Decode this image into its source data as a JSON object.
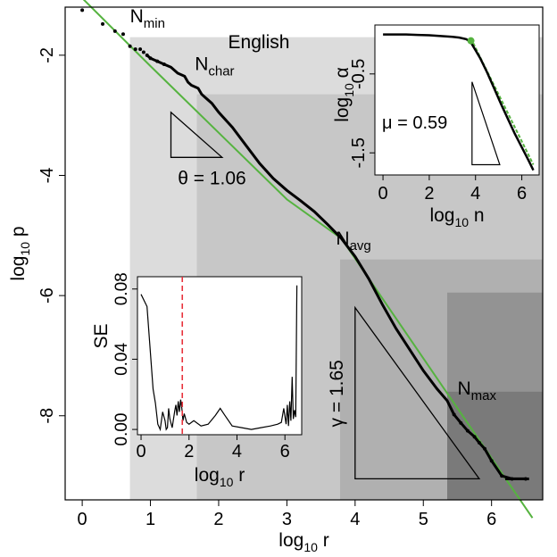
{
  "chart_data": [
    {
      "type": "line",
      "title": "English",
      "xlabel": "log10 r",
      "ylabel": "log10 p",
      "xlim": [
        -0.25,
        6.75
      ],
      "ylim": [
        -9.4,
        -1.2
      ],
      "xticks": [
        0,
        1,
        2,
        3,
        4,
        5,
        6
      ],
      "yticks": [
        -2,
        -4,
        -6,
        -8
      ],
      "grid": false,
      "regions": {
        "bounds_x": [
          0.7,
          1.68,
          3.78,
          5.35
        ],
        "bounds_y": [
          -1.7,
          -2.65,
          -5.4,
          -5.95,
          -7.6
        ],
        "colors": [
          "#ffffff",
          "#dcdcdc",
          "#c7c7c7",
          "#b0b0b0",
          "#939393",
          "#7a7a7a"
        ]
      },
      "annotations": [
        {
          "base": "N",
          "sub": "min",
          "x": 0.7,
          "y": -1.45
        },
        {
          "base": "N",
          "sub": "char",
          "x": 1.65,
          "y": -2.25
        },
        {
          "base": "N",
          "sub": "avg",
          "x": 3.72,
          "y": -5.15
        },
        {
          "base": "N",
          "sub": "max",
          "x": 5.5,
          "y": -7.65
        }
      ],
      "triangles": [
        {
          "label": "θ = 1.06",
          "pts": [
            [
              1.3,
              -2.95
            ],
            [
              1.3,
              -3.7
            ],
            [
              2.05,
              -3.7
            ]
          ]
        },
        {
          "label": "γ = 1.65",
          "pts": [
            [
              4.0,
              -6.2
            ],
            [
              4.0,
              -9.05
            ],
            [
              5.82,
              -9.05
            ]
          ]
        }
      ],
      "series": [
        {
          "color": "#000000",
          "x": [
            0,
            0.3,
            0.48,
            0.6,
            0.7,
            0.78,
            0.85,
            0.9,
            0.95,
            1.0,
            1.1,
            1.2,
            1.3,
            1.4,
            1.5,
            1.55,
            1.6,
            1.7,
            1.75,
            1.8,
            1.9,
            2.0,
            2.2,
            2.4,
            2.6,
            2.8,
            3.0,
            3.2,
            3.4,
            3.6,
            3.8,
            4.0,
            4.2,
            4.4,
            4.6,
            4.8,
            5.0,
            5.2,
            5.35,
            5.45,
            5.55,
            5.65,
            5.75,
            5.82,
            5.9,
            6.0,
            6.15,
            6.3,
            6.5
          ],
          "y": [
            -1.25,
            -1.48,
            -1.6,
            -1.65,
            -1.85,
            -1.9,
            -1.9,
            -1.95,
            -2.0,
            -2.05,
            -2.1,
            -2.15,
            -2.2,
            -2.3,
            -2.35,
            -2.45,
            -2.5,
            -2.55,
            -2.65,
            -2.7,
            -2.8,
            -2.95,
            -3.2,
            -3.5,
            -3.8,
            -4.05,
            -4.25,
            -4.42,
            -4.6,
            -4.82,
            -5.05,
            -5.35,
            -5.72,
            -6.15,
            -6.55,
            -6.9,
            -7.25,
            -7.55,
            -7.75,
            -7.98,
            -8.12,
            -8.25,
            -8.35,
            -8.45,
            -8.55,
            -8.75,
            -9.0,
            -9.05,
            -9.05
          ]
        },
        {
          "color": "#55b33f",
          "x": [
            0,
            1.0,
            2.0,
            3.0,
            3.8,
            6.6
          ],
          "y": [
            -1.05,
            -2.18,
            -3.29,
            -4.4,
            -5.05,
            -9.7
          ]
        }
      ]
    },
    {
      "type": "line",
      "xlabel": "log10 n",
      "ylabel": "log10 α",
      "xlim": [
        -0.35,
        6.75
      ],
      "ylim": [
        -1.78,
        0.12
      ],
      "xticks": [
        0,
        2,
        4,
        6
      ],
      "yticks": [
        -0.5,
        -1.5
      ],
      "annotation": "μ = 0.59",
      "triangle": [
        [
          3.85,
          -0.6
        ],
        [
          3.85,
          -1.65
        ],
        [
          5.05,
          -1.65
        ]
      ],
      "series": [
        {
          "color": "#000000",
          "x": [
            0,
            0.5,
            1,
            1.5,
            2,
            2.5,
            3,
            3.3,
            3.6,
            3.8,
            4.0,
            4.2,
            4.5,
            4.8,
            5.1,
            5.4,
            5.7,
            6.0,
            6.3,
            6.5
          ],
          "y": [
            0.0,
            0.0,
            0.0,
            -0.005,
            -0.01,
            -0.02,
            -0.03,
            -0.04,
            -0.06,
            -0.1,
            -0.2,
            -0.3,
            -0.48,
            -0.68,
            -0.88,
            -1.07,
            -1.26,
            -1.43,
            -1.6,
            -1.72
          ]
        },
        {
          "color": "#55b33f",
          "x": [
            3.8,
            6.5
          ],
          "y": [
            -0.05,
            -1.65
          ]
        }
      ],
      "marker": {
        "x": 3.8,
        "y": -0.08,
        "color": "#55b33f"
      }
    },
    {
      "type": "line",
      "xlabel": "log10 r",
      "ylabel": "SE",
      "xlim": [
        -0.15,
        6.7
      ],
      "ylim": [
        -0.003,
        0.087
      ],
      "xticks": [
        0,
        2,
        4,
        6
      ],
      "ytick_labels": [
        "0.00",
        "0.04",
        "0.08"
      ],
      "yticks": [
        0.0,
        0.04,
        0.08
      ],
      "vline": {
        "x": 1.72,
        "color": "#e8323c"
      },
      "series": [
        {
          "color": "#000000",
          "x": [
            0,
            0.25,
            0.5,
            0.6,
            0.7,
            0.8,
            0.9,
            1.0,
            1.05,
            1.1,
            1.15,
            1.2,
            1.3,
            1.4,
            1.45,
            1.5,
            1.55,
            1.6,
            1.65,
            1.7,
            1.75,
            1.8,
            1.9,
            2.0,
            2.2,
            2.5,
            2.8,
            3.1,
            3.3,
            3.5,
            3.8,
            4.2,
            4.6,
            5.0,
            5.4,
            5.7,
            5.85,
            5.95,
            6.05,
            6.1,
            6.15,
            6.2,
            6.25,
            6.3,
            6.35,
            6.4,
            6.45,
            6.5
          ],
          "y": [
            0.077,
            0.07,
            0.023,
            0.015,
            0.003,
            0.0,
            0.01,
            0.005,
            0.0,
            0.001,
            0.012,
            0.006,
            0.001,
            0.01,
            0.014,
            0.008,
            0.016,
            0.01,
            0.017,
            0.012,
            0.005,
            0.009,
            0.004,
            0.003,
            0.005,
            0.002,
            0.003,
            0.008,
            0.012,
            0.008,
            0.002,
            0.001,
            0.0,
            0.001,
            0.002,
            0.003,
            0.004,
            0.012,
            0.003,
            0.014,
            0.002,
            0.016,
            0.005,
            0.03,
            0.006,
            0.011,
            0.007,
            0.082
          ]
        }
      ]
    }
  ]
}
